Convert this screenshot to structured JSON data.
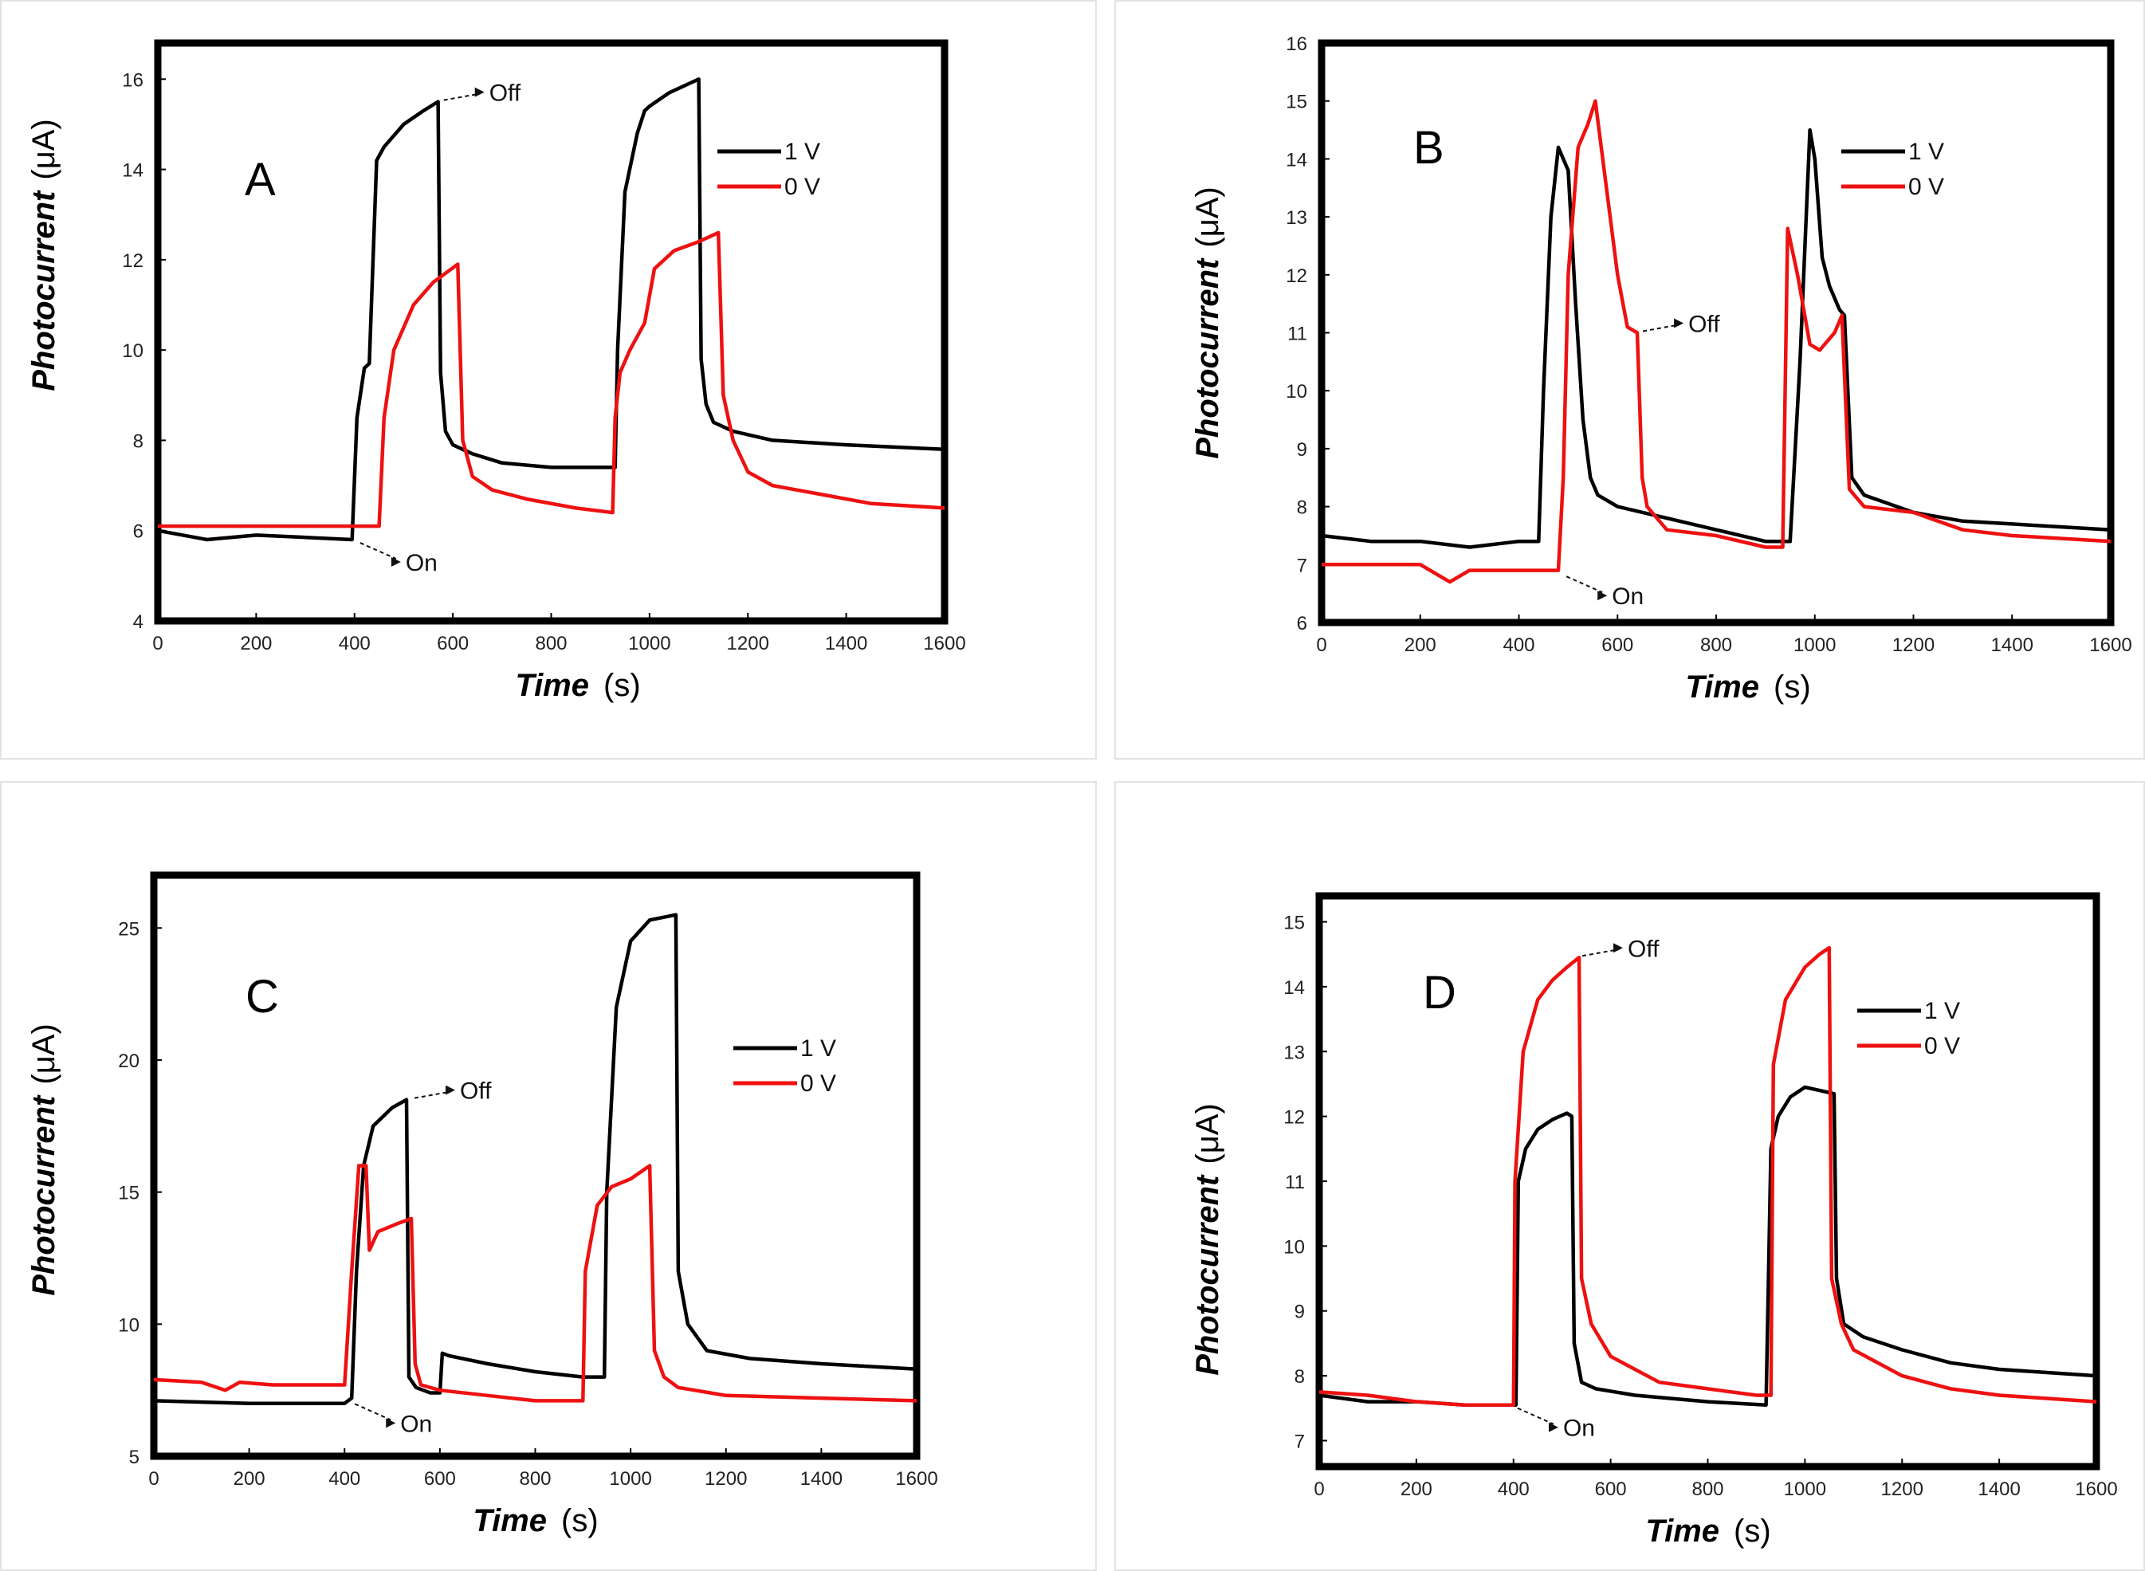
{
  "figure": {
    "background": "#ffffff"
  },
  "chart_data": [
    {
      "type": "line",
      "panel_label": "A",
      "title": "",
      "xlabel": {
        "main": "Time",
        "unit": "(s)"
      },
      "ylabel": {
        "main": "Photocurrent",
        "unit": "(μA)"
      },
      "xlim": [
        0,
        1600
      ],
      "ylim": [
        4,
        16.8
      ],
      "xticks": [
        0,
        200,
        400,
        600,
        800,
        1000,
        1200,
        1400,
        1600
      ],
      "yticks": [
        4,
        6,
        8,
        10,
        12,
        14,
        16
      ],
      "grid": false,
      "legend_position": "top-right",
      "series": [
        {
          "name": "1 V",
          "color": "#000000",
          "x": [
            0,
            100,
            200,
            300,
            395,
            405,
            420,
            430,
            445,
            460,
            500,
            540,
            570,
            575,
            585,
            600,
            640,
            700,
            800,
            930,
            935,
            950,
            975,
            990,
            1000,
            1040,
            1080,
            1100,
            1105,
            1115,
            1130,
            1170,
            1250,
            1400,
            1600
          ],
          "y": [
            6.0,
            5.8,
            5.9,
            5.85,
            5.8,
            8.5,
            9.6,
            9.7,
            14.2,
            14.5,
            15.0,
            15.3,
            15.5,
            9.5,
            8.2,
            7.9,
            7.7,
            7.5,
            7.4,
            7.4,
            10.0,
            13.5,
            14.8,
            15.3,
            15.4,
            15.7,
            15.9,
            16.0,
            9.8,
            8.8,
            8.4,
            8.2,
            8.0,
            7.9,
            7.8
          ]
        },
        {
          "name": "0 V",
          "color": "#ee1111",
          "x": [
            0,
            200,
            400,
            450,
            460,
            480,
            520,
            560,
            610,
            620,
            640,
            680,
            750,
            850,
            925,
            930,
            940,
            960,
            990,
            1010,
            1050,
            1100,
            1140,
            1150,
            1170,
            1200,
            1250,
            1350,
            1450,
            1600
          ],
          "y": [
            6.1,
            6.1,
            6.1,
            6.1,
            8.5,
            10.0,
            11.0,
            11.5,
            11.9,
            8.0,
            7.2,
            6.9,
            6.7,
            6.5,
            6.4,
            8.5,
            9.5,
            10.0,
            10.6,
            11.8,
            12.2,
            12.4,
            12.6,
            9.0,
            8.0,
            7.3,
            7.0,
            6.8,
            6.6,
            6.5
          ]
        }
      ],
      "annotations": [
        {
          "text": "Off",
          "x": 575,
          "y": 15.5
        },
        {
          "text": "On",
          "x": 405,
          "y": 5.8
        }
      ]
    },
    {
      "type": "line",
      "panel_label": "B",
      "title": "",
      "xlabel": {
        "main": "Time",
        "unit": "(s)"
      },
      "ylabel": {
        "main": "Photocurrent",
        "unit": "(μA)"
      },
      "xlim": [
        0,
        1600
      ],
      "ylim": [
        6,
        16
      ],
      "xticks": [
        0,
        200,
        400,
        600,
        800,
        1000,
        1200,
        1400,
        1600
      ],
      "yticks": [
        6,
        7,
        8,
        9,
        10,
        11,
        12,
        13,
        14,
        15,
        16
      ],
      "grid": false,
      "legend_position": "top-right",
      "series": [
        {
          "name": "1 V",
          "color": "#000000",
          "x": [
            0,
            100,
            200,
            300,
            400,
            440,
            450,
            465,
            480,
            500,
            515,
            530,
            545,
            560,
            600,
            700,
            800,
            900,
            950,
            970,
            990,
            1000,
            1015,
            1030,
            1050,
            1060,
            1075,
            1100,
            1200,
            1300,
            1400,
            1600
          ],
          "y": [
            7.5,
            7.4,
            7.4,
            7.3,
            7.4,
            7.4,
            10.0,
            13.0,
            14.2,
            13.8,
            11.5,
            9.5,
            8.5,
            8.2,
            8.0,
            7.8,
            7.6,
            7.4,
            7.4,
            10.5,
            14.5,
            14.0,
            12.3,
            11.8,
            11.4,
            11.3,
            8.5,
            8.2,
            7.9,
            7.75,
            7.7,
            7.6
          ]
        },
        {
          "name": "0 V",
          "color": "#ee1111",
          "x": [
            0,
            100,
            200,
            260,
            300,
            400,
            480,
            490,
            500,
            520,
            540,
            555,
            570,
            600,
            620,
            640,
            650,
            660,
            700,
            800,
            900,
            935,
            945,
            965,
            990,
            1010,
            1040,
            1055,
            1070,
            1100,
            1200,
            1300,
            1400,
            1600
          ],
          "y": [
            7.0,
            7.0,
            7.0,
            6.7,
            6.9,
            6.9,
            6.9,
            8.5,
            12.0,
            14.2,
            14.6,
            15.0,
            14.0,
            12.0,
            11.1,
            11.0,
            8.5,
            8.0,
            7.6,
            7.5,
            7.3,
            7.3,
            12.8,
            12.0,
            10.8,
            10.7,
            11.0,
            11.3,
            8.3,
            8.0,
            7.9,
            7.6,
            7.5,
            7.4
          ]
        }
      ],
      "annotations": [
        {
          "text": "Off",
          "x": 645,
          "y": 11.0
        },
        {
          "text": "On",
          "x": 490,
          "y": 6.85
        }
      ]
    },
    {
      "type": "line",
      "panel_label": "C",
      "title": "",
      "xlabel": {
        "main": "Time",
        "unit": "(s)"
      },
      "ylabel": {
        "main": "Photocurrent",
        "unit": "(μA)"
      },
      "xlim": [
        0,
        1600
      ],
      "ylim": [
        5,
        27
      ],
      "xticks": [
        0,
        200,
        400,
        600,
        800,
        1000,
        1200,
        1400,
        1600
      ],
      "yticks": [
        5,
        10,
        15,
        20,
        25
      ],
      "grid": false,
      "legend_position": "top-right",
      "series": [
        {
          "name": "1 V",
          "color": "#000000",
          "x": [
            0,
            200,
            400,
            415,
            425,
            440,
            460,
            500,
            530,
            535,
            550,
            580,
            600,
            605,
            620,
            700,
            800,
            900,
            945,
            950,
            970,
            1000,
            1040,
            1095,
            1100,
            1120,
            1160,
            1250,
            1400,
            1600
          ],
          "y": [
            7.1,
            7.0,
            7.0,
            7.2,
            12.0,
            16.0,
            17.5,
            18.2,
            18.5,
            8.0,
            7.6,
            7.4,
            7.4,
            8.9,
            8.8,
            8.5,
            8.2,
            8.0,
            8.0,
            15.0,
            22.0,
            24.5,
            25.3,
            25.5,
            12.0,
            10.0,
            9.0,
            8.7,
            8.5,
            8.3
          ]
        },
        {
          "name": "0 V",
          "color": "#ee1111",
          "x": [
            0,
            100,
            150,
            180,
            250,
            400,
            415,
            430,
            445,
            452,
            470,
            510,
            540,
            548,
            560,
            600,
            700,
            800,
            900,
            905,
            930,
            960,
            1000,
            1040,
            1050,
            1070,
            1100,
            1200,
            1400,
            1600
          ],
          "y": [
            7.9,
            7.8,
            7.5,
            7.8,
            7.7,
            7.7,
            12.0,
            16.0,
            16.0,
            12.8,
            13.5,
            13.8,
            14.0,
            8.5,
            7.7,
            7.5,
            7.3,
            7.1,
            7.1,
            12.0,
            14.5,
            15.2,
            15.5,
            16.0,
            9.0,
            8.0,
            7.6,
            7.3,
            7.2,
            7.1
          ]
        }
      ],
      "annotations": [
        {
          "text": "Off",
          "x": 540,
          "y": 18.5
        },
        {
          "text": "On",
          "x": 415,
          "y": 7.1
        }
      ]
    },
    {
      "type": "line",
      "panel_label": "D",
      "title": "",
      "xlabel": {
        "main": "Time",
        "unit": "(s)"
      },
      "ylabel": {
        "main": "Photocurrent",
        "unit": "(μA)"
      },
      "xlim": [
        0,
        1600
      ],
      "ylim": [
        6.6,
        15.4
      ],
      "xticks": [
        0,
        200,
        400,
        600,
        800,
        1000,
        1200,
        1400,
        1600
      ],
      "yticks": [
        7,
        8,
        9,
        10,
        11,
        12,
        13,
        14,
        15
      ],
      "grid": false,
      "legend_position": "top-right",
      "series": [
        {
          "name": "1 V",
          "color": "#000000",
          "x": [
            0,
            100,
            200,
            300,
            405,
            410,
            425,
            450,
            480,
            510,
            520,
            525,
            540,
            570,
            650,
            800,
            920,
            930,
            945,
            970,
            1000,
            1030,
            1060,
            1065,
            1080,
            1120,
            1200,
            1300,
            1400,
            1600
          ],
          "y": [
            7.7,
            7.6,
            7.6,
            7.55,
            7.55,
            11.0,
            11.5,
            11.8,
            11.95,
            12.05,
            12.0,
            8.5,
            7.9,
            7.8,
            7.7,
            7.6,
            7.55,
            11.5,
            12.0,
            12.3,
            12.45,
            12.4,
            12.35,
            9.5,
            8.8,
            8.6,
            8.4,
            8.2,
            8.1,
            8.0
          ]
        },
        {
          "name": "0 V",
          "color": "#ee1111",
          "x": [
            0,
            100,
            200,
            300,
            400,
            403,
            420,
            450,
            480,
            510,
            535,
            540,
            560,
            600,
            700,
            800,
            900,
            930,
            935,
            960,
            1000,
            1030,
            1050,
            1055,
            1075,
            1100,
            1200,
            1300,
            1400,
            1600
          ],
          "y": [
            7.75,
            7.7,
            7.6,
            7.55,
            7.55,
            11.0,
            13.0,
            13.8,
            14.1,
            14.3,
            14.45,
            9.5,
            8.8,
            8.3,
            7.9,
            7.8,
            7.7,
            7.7,
            12.8,
            13.8,
            14.3,
            14.5,
            14.6,
            9.5,
            8.8,
            8.4,
            8.0,
            7.8,
            7.7,
            7.6
          ]
        }
      ],
      "annotations": [
        {
          "text": "Off",
          "x": 535,
          "y": 14.45
        },
        {
          "text": "On",
          "x": 402,
          "y": 7.55
        }
      ]
    }
  ]
}
